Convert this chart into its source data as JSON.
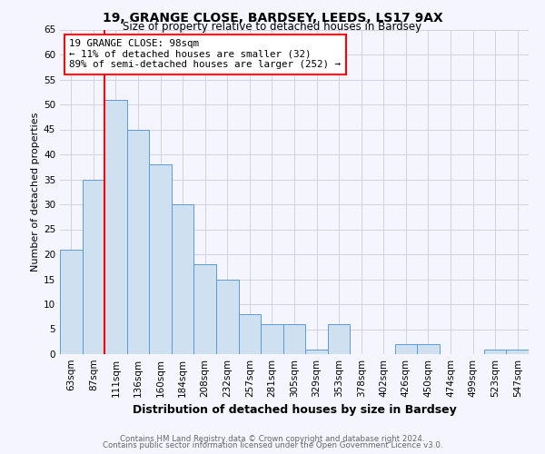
{
  "title": "19, GRANGE CLOSE, BARDSEY, LEEDS, LS17 9AX",
  "subtitle": "Size of property relative to detached houses in Bardsey",
  "xlabel": "Distribution of detached houses by size in Bardsey",
  "ylabel": "Number of detached properties",
  "categories": [
    "63sqm",
    "87sqm",
    "111sqm",
    "136sqm",
    "160sqm",
    "184sqm",
    "208sqm",
    "232sqm",
    "257sqm",
    "281sqm",
    "305sqm",
    "329sqm",
    "353sqm",
    "378sqm",
    "402sqm",
    "426sqm",
    "450sqm",
    "474sqm",
    "499sqm",
    "523sqm",
    "547sqm"
  ],
  "values": [
    21,
    35,
    51,
    45,
    38,
    30,
    18,
    15,
    8,
    6,
    6,
    1,
    6,
    0,
    0,
    2,
    2,
    0,
    0,
    1,
    1
  ],
  "bar_color": "#cfe0f0",
  "bar_edge_color": "#5b9bd5",
  "red_line_x": 1.5,
  "annotation_line1": "19 GRANGE CLOSE: 98sqm",
  "annotation_line2": "← 11% of detached houses are smaller (32)",
  "annotation_line3": "89% of semi-detached houses are larger (252) →",
  "annotation_box_color": "white",
  "annotation_box_edge_color": "red",
  "red_line_color": "red",
  "ylim": [
    0,
    65
  ],
  "yticks": [
    0,
    5,
    10,
    15,
    20,
    25,
    30,
    35,
    40,
    45,
    50,
    55,
    60,
    65
  ],
  "footer1": "Contains HM Land Registry data © Crown copyright and database right 2024.",
  "footer2": "Contains public sector information licensed under the Open Government Licence v3.0.",
  "background_color": "#f5f5ff",
  "grid_color": "#ccccdd",
  "title_fontsize": 10,
  "subtitle_fontsize": 8.5,
  "xlabel_fontsize": 9,
  "ylabel_fontsize": 8,
  "tick_fontsize": 7.5,
  "footer_fontsize": 6.2
}
